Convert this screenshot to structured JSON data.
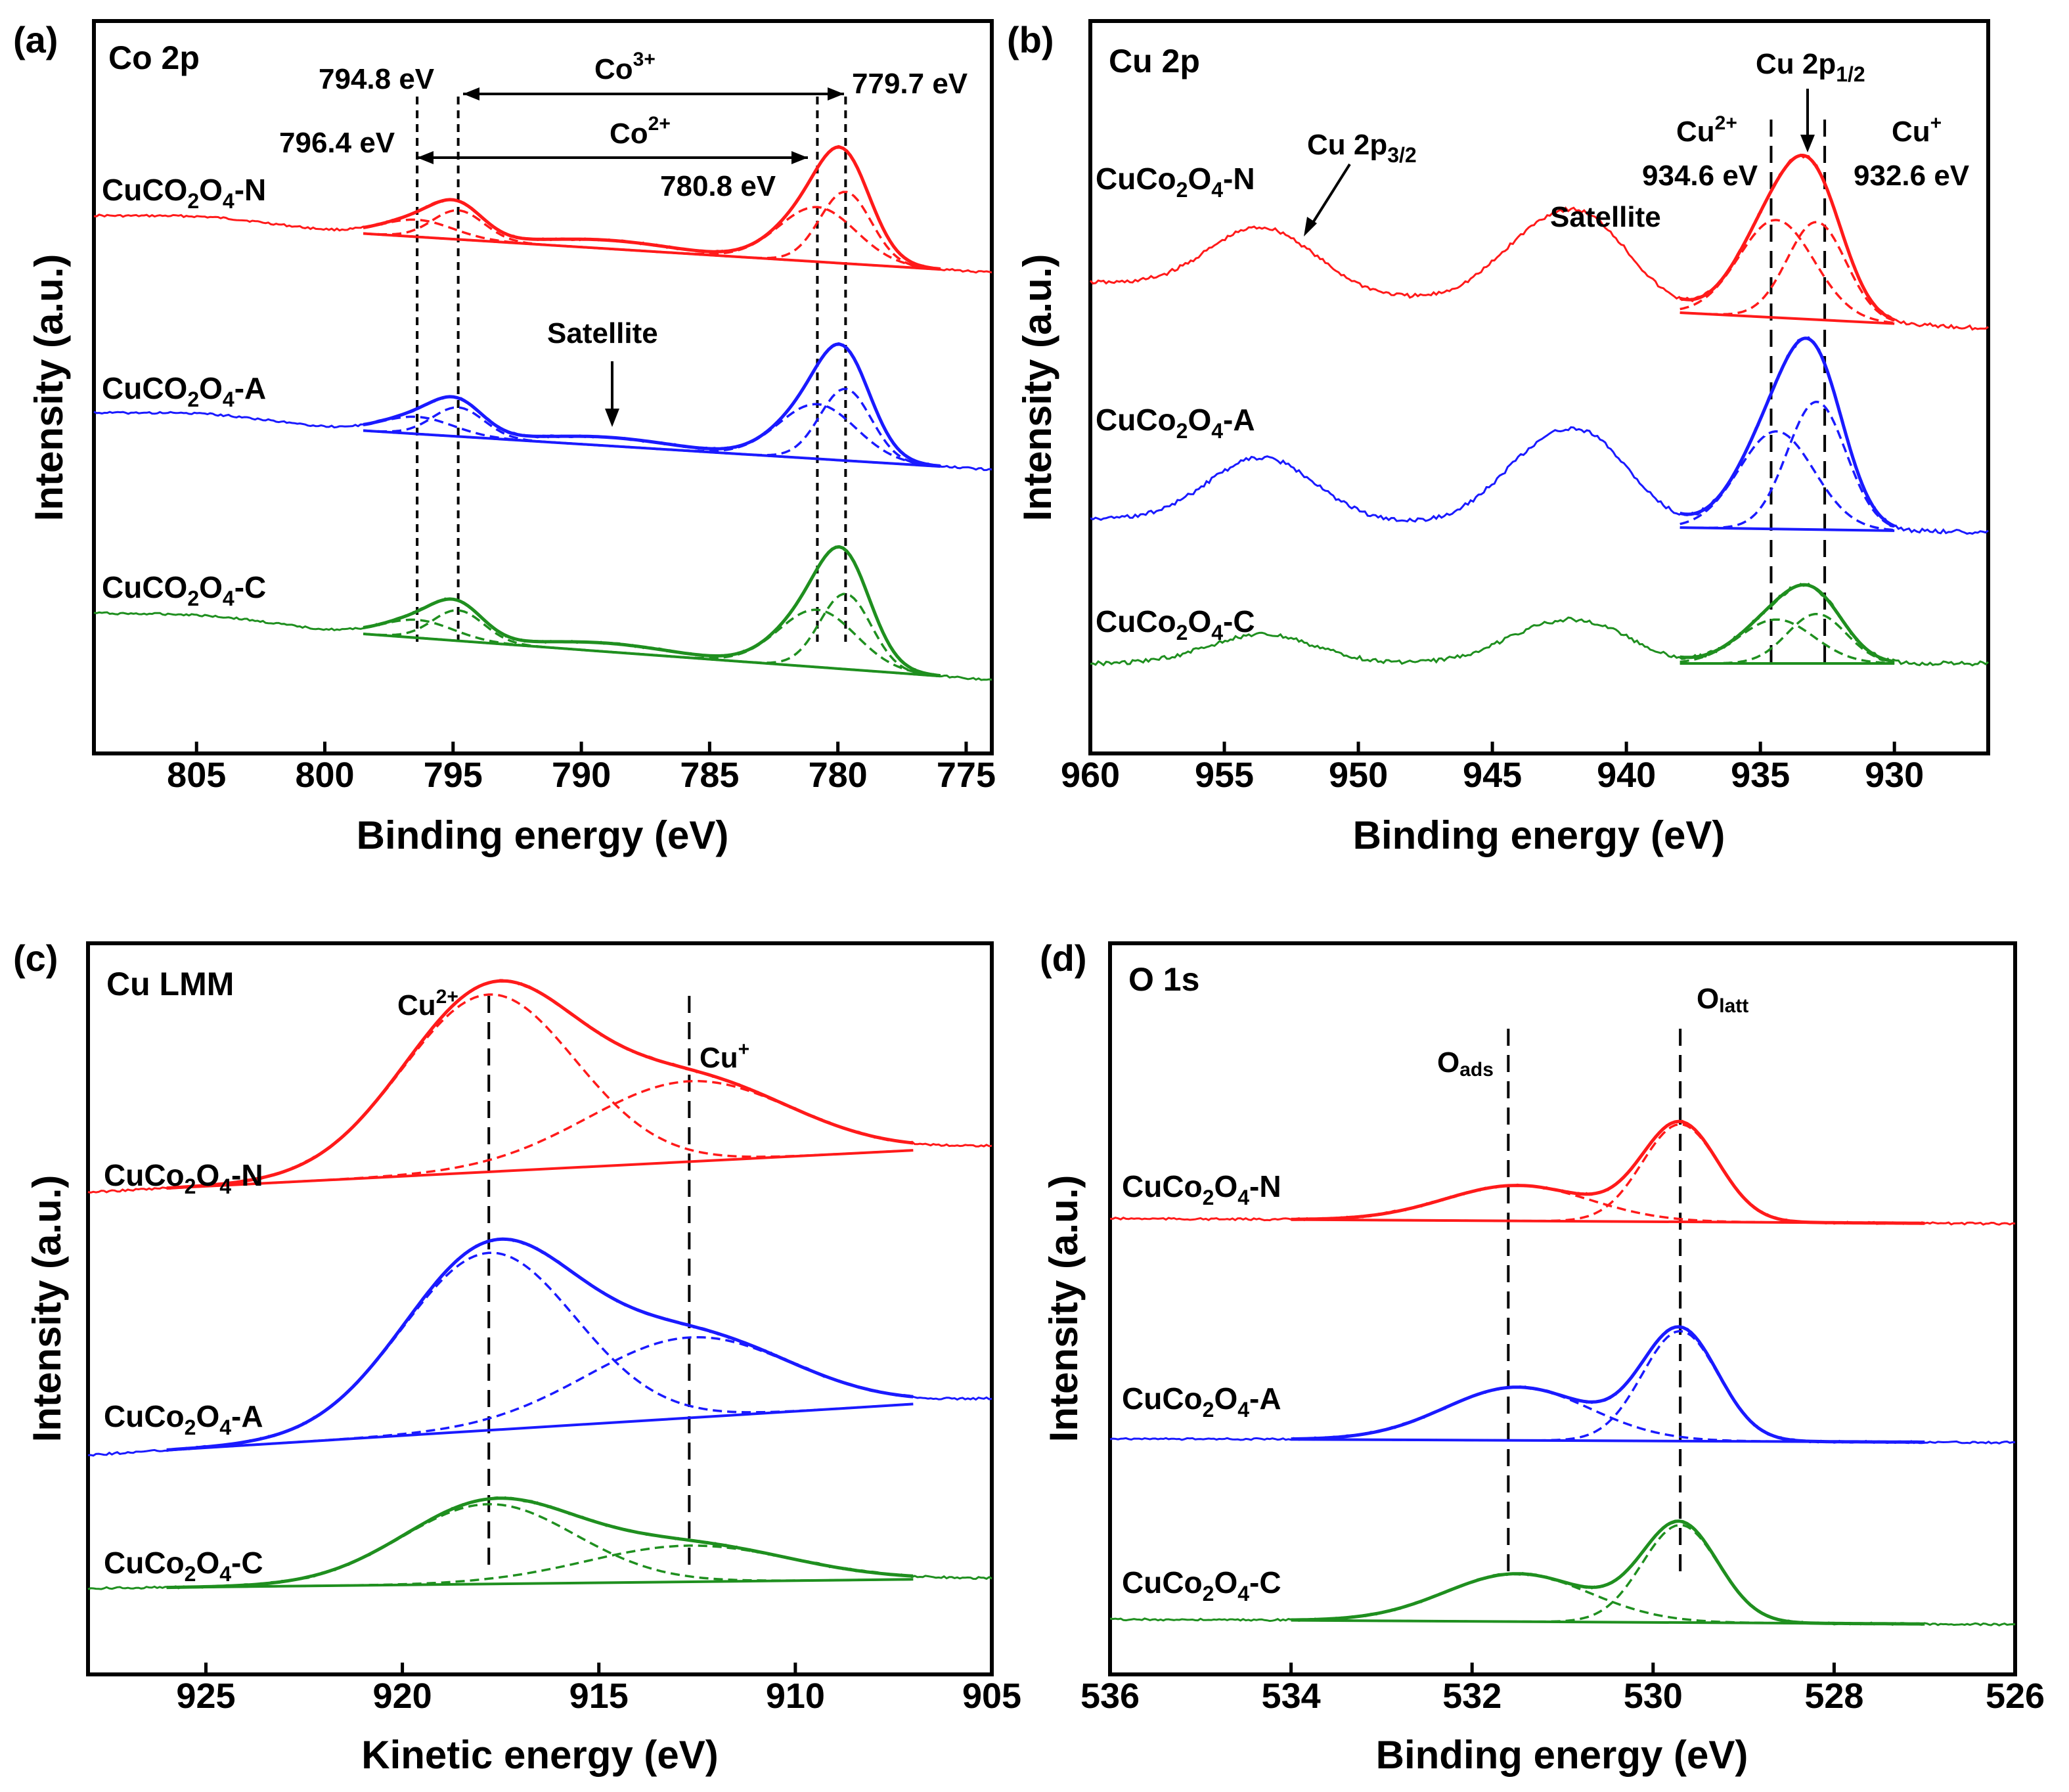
{
  "colors": {
    "N": "#ff1a1a",
    "A": "#1a1aff",
    "C": "#1f8f1f",
    "axis": "#000000"
  },
  "chart_data": [
    {
      "panel": "(a)",
      "type": "line",
      "title": "Co 2p",
      "xlabel": "Binding energy (eV)",
      "ylabel": "Intensity (a.u.)",
      "xlim": [
        809,
        774
      ],
      "x_reversed": true,
      "xticks": [
        805,
        800,
        795,
        790,
        785,
        780,
        775
      ],
      "series": [
        {
          "key": "N",
          "name": "CuCO2O4-N",
          "label_main": "CuCO",
          "sub1": "2",
          "mid": "O",
          "sub2": "4",
          "tail": "-N",
          "offset": 1.2,
          "amp": 0.55,
          "bg": [
            0.12,
            -0.15
          ]
        },
        {
          "key": "A",
          "name": "CuCO2O4-A",
          "label_main": "CuCO",
          "sub1": "2",
          "mid": "O",
          "sub2": "4",
          "tail": "-A",
          "offset": 0.6,
          "amp": 0.55,
          "bg": [
            0.05,
            -0.12
          ]
        },
        {
          "key": "C",
          "name": "CuCO2O4-C",
          "label_main": "CuCO",
          "sub1": "2",
          "mid": "O",
          "sub2": "4",
          "tail": "-C",
          "offset": 0.0,
          "amp": 0.6,
          "bg": [
            0.05,
            -0.12
          ]
        }
      ],
      "peaks": [
        {
          "center": 796.4,
          "h": 0.18,
          "w": 1.5
        },
        {
          "center": 794.8,
          "h": 0.22,
          "w": 1.2
        },
        {
          "center": 780.8,
          "h": 0.55,
          "w": 1.5
        },
        {
          "center": 779.7,
          "h": 0.6,
          "w": 1.0
        }
      ],
      "vlines": [
        796.4,
        794.8,
        780.8,
        779.7
      ],
      "annotations": {
        "co3_low": "794.8 eV",
        "co3_high": "779.7 eV",
        "co3": "Co",
        "co3_sup": "3+",
        "co2_low": "796.4 eV",
        "co2_high": "780.8 eV",
        "co2": "Co",
        "co2_sup": "2+",
        "satellite": "Satellite"
      }
    },
    {
      "panel": "(b)",
      "type": "line",
      "title": "Cu 2p",
      "xlabel": "Binding energy (eV)",
      "ylabel": "Intensity (a.u.)",
      "xlim": [
        960,
        926.5
      ],
      "x_reversed": true,
      "xticks": [
        960,
        955,
        950,
        945,
        940,
        935,
        930
      ],
      "series": [
        {
          "key": "N",
          "name": "CuCo2O4-N",
          "label_main": "CuCo",
          "sub1": "2",
          "mid": "O",
          "sub2": "4",
          "tail": "-N",
          "offset": 1.2
        },
        {
          "key": "A",
          "name": "CuCo2O4-A",
          "label_main": "CuCo",
          "sub1": "2",
          "mid": "O",
          "sub2": "4",
          "tail": "-A",
          "offset": 0.6
        },
        {
          "key": "C",
          "name": "CuCo2O4-C",
          "label_main": "CuCo",
          "sub1": "2",
          "mid": "O",
          "sub2": "4",
          "tail": "-C",
          "offset": 0.0
        }
      ],
      "vlines": [
        934.6,
        932.6
      ],
      "annotations": {
        "cu2p32": "Cu 2p",
        "cu2p32_sub": "3/2",
        "cu2p12": "Cu 2p",
        "cu2p12_sub": "1/2",
        "satellite": "Satellite",
        "cu2": "Cu",
        "cu2_sup": "2+",
        "cu2_val": "934.6 eV",
        "cu1": "Cu",
        "cu1_sup": "+",
        "cu1_val": "932.6 eV"
      }
    },
    {
      "panel": "(c)",
      "type": "line",
      "title": "Cu LMM",
      "xlabel": "Kinetic energy (eV)",
      "ylabel": "Intensity (a.u.)",
      "xlim": [
        928,
        905
      ],
      "x_reversed": true,
      "xticks": [
        925,
        920,
        915,
        910,
        905
      ],
      "series": [
        {
          "key": "N",
          "name": "CuCo2O4-N",
          "label_main": "CuCo",
          "sub1": "2",
          "mid": "O",
          "sub2": "4",
          "tail": "-N",
          "offset": 1.2
        },
        {
          "key": "A",
          "name": "CuCo2O4-A",
          "label_main": "CuCo",
          "sub1": "2",
          "mid": "O",
          "sub2": "4",
          "tail": "-A",
          "offset": 0.6
        },
        {
          "key": "C",
          "name": "CuCo2O4-C",
          "label_main": "CuCo",
          "sub1": "2",
          "mid": "O",
          "sub2": "4",
          "tail": "-C",
          "offset": 0.0
        }
      ],
      "vlines": [
        917.8,
        912.7
      ],
      "annotations": {
        "cu2": "Cu",
        "cu2_sup": "2+",
        "cu1": "Cu",
        "cu1_sup": "+"
      }
    },
    {
      "panel": "(d)",
      "type": "line",
      "title": "O 1s",
      "xlabel": "Binding energy (eV)",
      "ylabel": "Intensity (a.u.)",
      "xlim": [
        536,
        526
      ],
      "x_reversed": true,
      "xticks": [
        536,
        534,
        532,
        530,
        528,
        526
      ],
      "series": [
        {
          "key": "N",
          "name": "CuCo2O4-N",
          "label_main": "CuCo",
          "sub1": "2",
          "mid": "O",
          "sub2": "4",
          "tail": "-N",
          "offset": 1.2
        },
        {
          "key": "A",
          "name": "CuCo2O4-A",
          "label_main": "CuCo",
          "sub1": "2",
          "mid": "O",
          "sub2": "4",
          "tail": "-A",
          "offset": 0.6
        },
        {
          "key": "C",
          "name": "CuCo2O4-C",
          "label_main": "CuCo",
          "sub1": "2",
          "mid": "O",
          "sub2": "4",
          "tail": "-C",
          "offset": 0.0
        }
      ],
      "vlines": [
        531.6,
        529.7
      ],
      "annotations": {
        "oads": "O",
        "oads_sub": "ads",
        "olatt": "O",
        "olatt_sub": "latt"
      }
    }
  ]
}
